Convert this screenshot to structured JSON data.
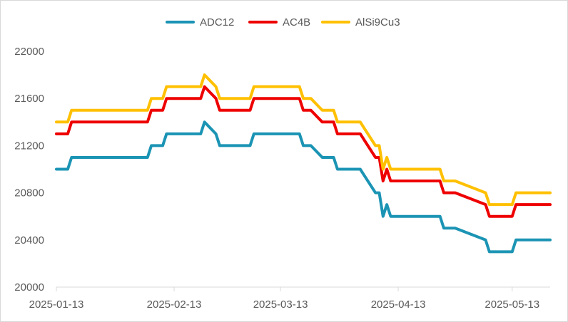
{
  "chart_data": {
    "type": "line",
    "title": "",
    "xlabel": "",
    "ylabel": "",
    "ylim": [
      20000,
      22000
    ],
    "yticks": [
      "20000",
      "20400",
      "20800",
      "21200",
      "21600",
      "22000"
    ],
    "xticks": [
      "2025-01-13",
      "2025-02-13",
      "2025-03-13",
      "2025-04-13",
      "2025-05-13"
    ],
    "xrange": [
      "2025-01-13",
      "2025-05-23"
    ],
    "legend_position": "top",
    "grid": false,
    "series": [
      {
        "name": "ADC12",
        "color": "#1b94b4",
        "points": [
          [
            "2025-01-13",
            21000
          ],
          [
            "2025-01-16",
            21000
          ],
          [
            "2025-01-17",
            21100
          ],
          [
            "2025-02-06",
            21100
          ],
          [
            "2025-02-07",
            21200
          ],
          [
            "2025-02-10",
            21200
          ],
          [
            "2025-02-11",
            21300
          ],
          [
            "2025-02-20",
            21300
          ],
          [
            "2025-02-21",
            21400
          ],
          [
            "2025-02-24",
            21300
          ],
          [
            "2025-02-25",
            21200
          ],
          [
            "2025-03-05",
            21200
          ],
          [
            "2025-03-06",
            21300
          ],
          [
            "2025-03-18",
            21300
          ],
          [
            "2025-03-19",
            21200
          ],
          [
            "2025-03-21",
            21200
          ],
          [
            "2025-03-24",
            21100
          ],
          [
            "2025-03-27",
            21100
          ],
          [
            "2025-03-28",
            21000
          ],
          [
            "2025-04-03",
            21000
          ],
          [
            "2025-04-07",
            20800
          ],
          [
            "2025-04-08",
            20800
          ],
          [
            "2025-04-09",
            20600
          ],
          [
            "2025-04-10",
            20700
          ],
          [
            "2025-04-11",
            20600
          ],
          [
            "2025-04-24",
            20600
          ],
          [
            "2025-04-25",
            20500
          ],
          [
            "2025-04-28",
            20500
          ],
          [
            "2025-05-06",
            20400
          ],
          [
            "2025-05-07",
            20300
          ],
          [
            "2025-05-13",
            20300
          ],
          [
            "2025-05-14",
            20400
          ],
          [
            "2025-05-23",
            20400
          ]
        ]
      },
      {
        "name": "AC4B",
        "color": "#ee0000",
        "points": [
          [
            "2025-01-13",
            21300
          ],
          [
            "2025-01-16",
            21300
          ],
          [
            "2025-01-17",
            21400
          ],
          [
            "2025-02-06",
            21400
          ],
          [
            "2025-02-07",
            21500
          ],
          [
            "2025-02-10",
            21500
          ],
          [
            "2025-02-11",
            21600
          ],
          [
            "2025-02-20",
            21600
          ],
          [
            "2025-02-21",
            21700
          ],
          [
            "2025-02-24",
            21600
          ],
          [
            "2025-02-25",
            21500
          ],
          [
            "2025-03-05",
            21500
          ],
          [
            "2025-03-06",
            21600
          ],
          [
            "2025-03-18",
            21600
          ],
          [
            "2025-03-19",
            21500
          ],
          [
            "2025-03-21",
            21500
          ],
          [
            "2025-03-24",
            21400
          ],
          [
            "2025-03-27",
            21400
          ],
          [
            "2025-03-28",
            21300
          ],
          [
            "2025-04-03",
            21300
          ],
          [
            "2025-04-07",
            21100
          ],
          [
            "2025-04-08",
            21100
          ],
          [
            "2025-04-09",
            20900
          ],
          [
            "2025-04-10",
            21000
          ],
          [
            "2025-04-11",
            20900
          ],
          [
            "2025-04-24",
            20900
          ],
          [
            "2025-04-25",
            20800
          ],
          [
            "2025-04-28",
            20800
          ],
          [
            "2025-05-06",
            20700
          ],
          [
            "2025-05-07",
            20600
          ],
          [
            "2025-05-13",
            20600
          ],
          [
            "2025-05-14",
            20700
          ],
          [
            "2025-05-23",
            20700
          ]
        ]
      },
      {
        "name": "AlSi9Cu3",
        "color": "#ffc000",
        "points": [
          [
            "2025-01-13",
            21400
          ],
          [
            "2025-01-16",
            21400
          ],
          [
            "2025-01-17",
            21500
          ],
          [
            "2025-02-06",
            21500
          ],
          [
            "2025-02-07",
            21600
          ],
          [
            "2025-02-10",
            21600
          ],
          [
            "2025-02-11",
            21700
          ],
          [
            "2025-02-20",
            21700
          ],
          [
            "2025-02-21",
            21800
          ],
          [
            "2025-02-24",
            21700
          ],
          [
            "2025-02-25",
            21600
          ],
          [
            "2025-03-05",
            21600
          ],
          [
            "2025-03-06",
            21700
          ],
          [
            "2025-03-18",
            21700
          ],
          [
            "2025-03-19",
            21600
          ],
          [
            "2025-03-21",
            21600
          ],
          [
            "2025-03-24",
            21500
          ],
          [
            "2025-03-27",
            21500
          ],
          [
            "2025-03-28",
            21400
          ],
          [
            "2025-04-03",
            21400
          ],
          [
            "2025-04-07",
            21200
          ],
          [
            "2025-04-08",
            21200
          ],
          [
            "2025-04-09",
            21000
          ],
          [
            "2025-04-10",
            21100
          ],
          [
            "2025-04-11",
            21000
          ],
          [
            "2025-04-24",
            21000
          ],
          [
            "2025-04-25",
            20900
          ],
          [
            "2025-04-28",
            20900
          ],
          [
            "2025-05-06",
            20800
          ],
          [
            "2025-05-07",
            20700
          ],
          [
            "2025-05-13",
            20700
          ],
          [
            "2025-05-14",
            20800
          ],
          [
            "2025-05-23",
            20800
          ]
        ]
      }
    ]
  }
}
